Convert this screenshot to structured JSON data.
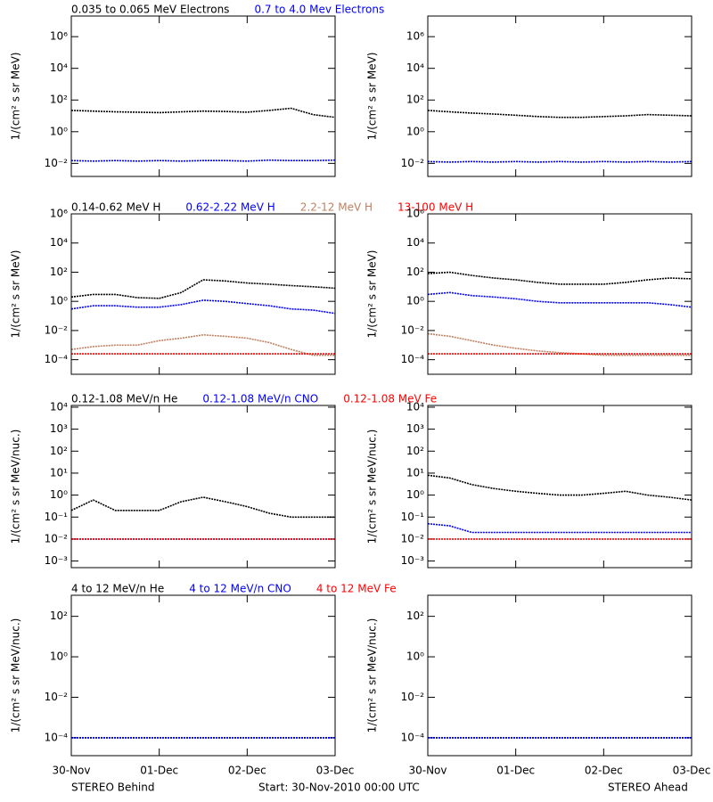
{
  "chart_data": [
    {
      "type": "line",
      "log_scale": true,
      "y_label": "1/(cm² s sr MeV)",
      "x": [
        0,
        0.25,
        0.5,
        0.75,
        1,
        1.25,
        1.5,
        1.75,
        2,
        2.25,
        2.5,
        2.75,
        3
      ],
      "xlim": [
        0,
        3
      ],
      "ylim": [
        0.0015,
        20000000
      ],
      "yticks": [
        {
          "value": 0.01,
          "label": "10⁻²"
        },
        {
          "value": 1,
          "label": "10⁰"
        },
        {
          "value": 100,
          "label": "10²"
        },
        {
          "value": 10000,
          "label": "10⁴"
        },
        {
          "value": 1000000,
          "label": "10⁶"
        }
      ],
      "series": [
        {
          "name": "0.035 to 0.065 MeV Electrons",
          "color": "#000000",
          "values": [
            22,
            20,
            18,
            17,
            16,
            18,
            20,
            19,
            17,
            22,
            30,
            12,
            8
          ]
        },
        {
          "name": "0.7 to 4.0 Mev Electrons",
          "color": "#0000ff",
          "values": [
            0.015,
            0.014,
            0.015,
            0.014,
            0.015,
            0.014,
            0.015,
            0.015,
            0.014,
            0.016,
            0.015,
            0.015,
            0.016
          ]
        }
      ]
    },
    {
      "type": "line",
      "log_scale": true,
      "y_label": "1/(cm² s sr MeV)",
      "x": [
        0,
        0.25,
        0.5,
        0.75,
        1,
        1.25,
        1.5,
        1.75,
        2,
        2.25,
        2.5,
        2.75,
        3
      ],
      "xlim": [
        0,
        3
      ],
      "ylim": [
        0.0015,
        20000000
      ],
      "yticks": [
        {
          "value": 0.01,
          "label": "10⁻²"
        },
        {
          "value": 1,
          "label": "10⁰"
        },
        {
          "value": 100,
          "label": "10²"
        },
        {
          "value": 10000,
          "label": "10⁴"
        },
        {
          "value": 1000000,
          "label": "10⁶"
        }
      ],
      "series": [
        {
          "color": "#000000",
          "values": [
            22,
            18,
            15,
            13,
            11,
            9,
            8,
            8,
            9,
            10,
            12,
            11,
            10
          ]
        },
        {
          "color": "#0000ff",
          "values": [
            0.013,
            0.012,
            0.013,
            0.012,
            0.013,
            0.012,
            0.013,
            0.012,
            0.013,
            0.012,
            0.013,
            0.012,
            0.013
          ]
        }
      ]
    },
    {
      "type": "line",
      "log_scale": true,
      "y_label": "1/(cm² s sr MeV)",
      "x": [
        0,
        0.25,
        0.5,
        0.75,
        1,
        1.25,
        1.5,
        1.75,
        2,
        2.25,
        2.5,
        2.75,
        3
      ],
      "xlim": [
        0,
        3
      ],
      "ylim": [
        1e-05,
        1000000
      ],
      "yticks": [
        {
          "value": 0.0001,
          "label": "10⁻⁴"
        },
        {
          "value": 0.01,
          "label": "10⁻²"
        },
        {
          "value": 1,
          "label": "10⁰"
        },
        {
          "value": 100,
          "label": "10²"
        },
        {
          "value": 10000,
          "label": "10⁴"
        },
        {
          "value": 1000000,
          "label": "10⁶"
        }
      ],
      "series": [
        {
          "name": "0.14-0.62 MeV H",
          "color": "#000000",
          "values": [
            2,
            3,
            3,
            1.8,
            1.6,
            4,
            30,
            25,
            18,
            15,
            12,
            10,
            8
          ]
        },
        {
          "name": "0.62-2.22 MeV H",
          "color": "#0000ff",
          "values": [
            0.3,
            0.5,
            0.5,
            0.4,
            0.4,
            0.6,
            1.2,
            1,
            0.7,
            0.5,
            0.3,
            0.25,
            0.15
          ]
        },
        {
          "name": "2.2-12 MeV H",
          "color": "#c08060",
          "values": [
            0.0005,
            0.0008,
            0.001,
            0.001,
            0.002,
            0.003,
            0.005,
            0.004,
            0.003,
            0.0015,
            0.0005,
            0.0002,
            0.0002
          ]
        },
        {
          "name": "13-100 MeV H",
          "color": "#ff0000",
          "values": [
            0.00025,
            0.00025,
            0.00025,
            0.00025,
            0.00025,
            0.00025,
            0.00025,
            0.00025,
            0.00025,
            0.00025,
            0.00025,
            0.00025,
            0.00025
          ]
        }
      ]
    },
    {
      "type": "line",
      "log_scale": true,
      "y_label": "1/(cm² s sr MeV)",
      "x": [
        0,
        0.25,
        0.5,
        0.75,
        1,
        1.25,
        1.5,
        1.75,
        2,
        2.25,
        2.5,
        2.75,
        3
      ],
      "xlim": [
        0,
        3
      ],
      "ylim": [
        1e-05,
        1000000
      ],
      "yticks": [
        {
          "value": 0.0001,
          "label": "10⁻⁴"
        },
        {
          "value": 0.01,
          "label": "10⁻²"
        },
        {
          "value": 1,
          "label": "10⁰"
        },
        {
          "value": 100,
          "label": "10²"
        },
        {
          "value": 10000,
          "label": "10⁴"
        },
        {
          "value": 1000000,
          "label": "10⁶"
        }
      ],
      "series": [
        {
          "color": "#000000",
          "values": [
            80,
            100,
            60,
            40,
            30,
            20,
            15,
            15,
            15,
            20,
            30,
            40,
            35
          ]
        },
        {
          "color": "#0000ff",
          "values": [
            3,
            4,
            2.5,
            2,
            1.5,
            1,
            0.8,
            0.8,
            0.8,
            0.8,
            0.8,
            0.6,
            0.4
          ]
        },
        {
          "color": "#c08060",
          "values": [
            0.006,
            0.004,
            0.002,
            0.001,
            0.0006,
            0.0004,
            0.0003,
            0.00025,
            0.0002,
            0.0002,
            0.0002,
            0.0002,
            0.0002
          ]
        },
        {
          "color": "#ff0000",
          "values": [
            0.00025,
            0.00025,
            0.00025,
            0.00025,
            0.00025,
            0.00025,
            0.00025,
            0.00025,
            0.00025,
            0.00025,
            0.00025,
            0.00025,
            0.00025
          ]
        }
      ]
    },
    {
      "type": "line",
      "log_scale": true,
      "y_label": "1/(cm² s sr MeV/nuc.)",
      "x": [
        0,
        0.25,
        0.5,
        0.75,
        1,
        1.25,
        1.5,
        1.75,
        2,
        2.25,
        2.5,
        2.75,
        3
      ],
      "xlim": [
        0,
        3
      ],
      "ylim": [
        0.0005,
        12000
      ],
      "yticks": [
        {
          "value": 0.001,
          "label": "10⁻³"
        },
        {
          "value": 0.01,
          "label": "10⁻²"
        },
        {
          "value": 0.1,
          "label": "10⁻¹"
        },
        {
          "value": 1,
          "label": "10⁰"
        },
        {
          "value": 10,
          "label": "10¹"
        },
        {
          "value": 100,
          "label": "10²"
        },
        {
          "value": 1000,
          "label": "10³"
        },
        {
          "value": 10000,
          "label": "10⁴"
        }
      ],
      "series": [
        {
          "name": "0.12-1.08 MeV/n He",
          "color": "#000000",
          "values": [
            0.2,
            0.6,
            0.2,
            0.2,
            0.2,
            0.5,
            0.8,
            0.5,
            0.3,
            0.15,
            0.1,
            0.1,
            0.1
          ]
        },
        {
          "name": "0.12-1.08 MeV/n CNO",
          "color": "#0000ff",
          "values": [
            0.01,
            0.01,
            0.01,
            0.01,
            0.01,
            0.01,
            0.01,
            0.01,
            0.01,
            0.01,
            0.01,
            0.01,
            0.01
          ]
        },
        {
          "name": "0.12-1.08 MeV Fe",
          "color": "#ff0000",
          "values": [
            0.01,
            0.01,
            0.01,
            0.01,
            0.01,
            0.01,
            0.01,
            0.01,
            0.01,
            0.01,
            0.01,
            0.01,
            0.01
          ]
        }
      ]
    },
    {
      "type": "line",
      "log_scale": true,
      "y_label": "1/(cm² s sr MeV/nuc.)",
      "x": [
        0,
        0.25,
        0.5,
        0.75,
        1,
        1.25,
        1.5,
        1.75,
        2,
        2.25,
        2.5,
        2.75,
        3
      ],
      "xlim": [
        0,
        3
      ],
      "ylim": [
        0.0005,
        12000
      ],
      "yticks": [
        {
          "value": 0.001,
          "label": "10⁻³"
        },
        {
          "value": 0.01,
          "label": "10⁻²"
        },
        {
          "value": 0.1,
          "label": "10⁻¹"
        },
        {
          "value": 1,
          "label": "10⁰"
        },
        {
          "value": 10,
          "label": "10¹"
        },
        {
          "value": 100,
          "label": "10²"
        },
        {
          "value": 1000,
          "label": "10³"
        },
        {
          "value": 10000,
          "label": "10⁴"
        }
      ],
      "series": [
        {
          "color": "#000000",
          "values": [
            8,
            6,
            3,
            2,
            1.5,
            1.2,
            1,
            1,
            1.2,
            1.5,
            1,
            0.8,
            0.6
          ]
        },
        {
          "color": "#0000ff",
          "values": [
            0.05,
            0.04,
            0.02,
            0.02,
            0.02,
            0.02,
            0.02,
            0.02,
            0.02,
            0.02,
            0.02,
            0.02,
            0.02
          ]
        },
        {
          "color": "#ff0000",
          "values": [
            0.01,
            0.01,
            0.01,
            0.01,
            0.01,
            0.01,
            0.01,
            0.01,
            0.01,
            0.01,
            0.01,
            0.01,
            0.01
          ]
        }
      ]
    },
    {
      "type": "line",
      "log_scale": true,
      "y_label": "1/(cm² s sr MeV/nuc.)",
      "x": [
        0,
        0.25,
        0.5,
        0.75,
        1,
        1.25,
        1.5,
        1.75,
        2,
        2.25,
        2.5,
        2.75,
        3
      ],
      "xlim": [
        0,
        3
      ],
      "ylim": [
        1.3e-05,
        1100
      ],
      "xticks": [
        {
          "value": 0,
          "label": "30-Nov"
        },
        {
          "value": 1,
          "label": "01-Dec"
        },
        {
          "value": 2,
          "label": "02-Dec"
        },
        {
          "value": 3,
          "label": "03-Dec"
        }
      ],
      "yticks": [
        {
          "value": 0.0001,
          "label": "10⁻⁴"
        },
        {
          "value": 0.01,
          "label": "10⁻²"
        },
        {
          "value": 1,
          "label": "10⁰"
        },
        {
          "value": 100,
          "label": "10²"
        }
      ],
      "series": [
        {
          "name": "4 to 12 MeV/n He",
          "color": "#000000",
          "values": [
            0.0001,
            0.0001,
            0.0001,
            0.0001,
            0.0001,
            0.0001,
            0.0001,
            0.0001,
            0.0001,
            0.0001,
            0.0001,
            0.0001,
            0.0001
          ]
        },
        {
          "name": "4 to 12 MeV/n CNO",
          "color": "#0000ff",
          "values": [
            0.0001,
            0.0001,
            0.0001,
            0.0001,
            0.0001,
            0.0001,
            0.0001,
            0.0001,
            0.0001,
            0.0001,
            0.0001,
            0.0001,
            0.0001
          ]
        },
        {
          "name": "4 to 12 MeV Fe",
          "color": "#ff0000",
          "values": [
            null,
            null,
            null,
            null,
            null,
            null,
            null,
            null,
            null,
            null,
            null,
            null,
            null
          ]
        }
      ]
    },
    {
      "type": "line",
      "log_scale": true,
      "y_label": "1/(cm² s sr MeV/nuc.)",
      "x": [
        0,
        0.25,
        0.5,
        0.75,
        1,
        1.25,
        1.5,
        1.75,
        2,
        2.25,
        2.5,
        2.75,
        3
      ],
      "xlim": [
        0,
        3
      ],
      "ylim": [
        1.3e-05,
        1100
      ],
      "xticks": [
        {
          "value": 0,
          "label": "30-Nov"
        },
        {
          "value": 1,
          "label": "01-Dec"
        },
        {
          "value": 2,
          "label": "02-Dec"
        },
        {
          "value": 3,
          "label": "03-Dec"
        }
      ],
      "yticks": [
        {
          "value": 0.0001,
          "label": "10⁻⁴"
        },
        {
          "value": 0.01,
          "label": "10⁻²"
        },
        {
          "value": 1,
          "label": "10⁰"
        },
        {
          "value": 100,
          "label": "10²"
        }
      ],
      "series": [
        {
          "color": "#000000",
          "values": [
            0.0001,
            0.0001,
            0.0001,
            0.0001,
            0.0001,
            0.0001,
            0.0001,
            0.0001,
            0.0001,
            0.0001,
            0.0001,
            0.0001,
            0.0001
          ]
        },
        {
          "color": "#0000ff",
          "values": [
            0.0001,
            0.0001,
            0.0001,
            0.0001,
            0.0001,
            0.0001,
            0.0001,
            0.0001,
            0.0001,
            0.0001,
            0.0001,
            0.0001,
            0.0001
          ]
        },
        {
          "color": "#ff0000",
          "values": [
            null,
            null,
            null,
            null,
            null,
            null,
            null,
            null,
            null,
            null,
            null,
            null,
            null
          ]
        }
      ]
    }
  ],
  "footer": {
    "left": "STEREO Behind",
    "center": "Start: 30-Nov-2010 00:00 UTC",
    "right": "STEREO Ahead"
  }
}
